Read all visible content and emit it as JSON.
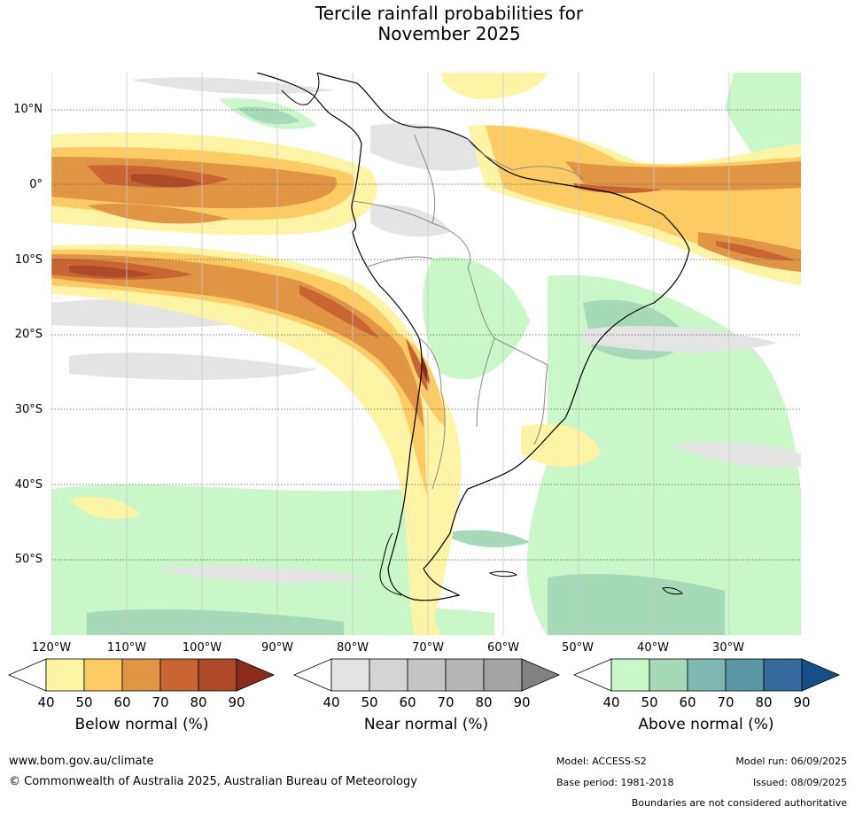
{
  "title": {
    "line1": "Tercile rainfall probabilities for",
    "line2": "November 2025"
  },
  "map": {
    "lat_labels": [
      "10°N",
      "0°",
      "10°S",
      "20°S",
      "30°S",
      "40°S",
      "50°S"
    ],
    "lon_labels": [
      "120°W",
      "110°W",
      "100°W",
      "90°W",
      "80°W",
      "70°W",
      "60°W",
      "50°W",
      "40°W",
      "30°W"
    ]
  },
  "colorbars": [
    {
      "label": "Below normal (%)",
      "ticks": [
        "40",
        "50",
        "60",
        "70",
        "80",
        "90"
      ],
      "colors": [
        "#fff3a6",
        "#fdcb64",
        "#e09545",
        "#c96433",
        "#ad4a29",
        "#8b2b1a"
      ]
    },
    {
      "label": "Near normal (%)",
      "ticks": [
        "40",
        "50",
        "60",
        "70",
        "80",
        "90"
      ],
      "colors": [
        "#e4e4e4",
        "#d4d4d4",
        "#c5c5c5",
        "#b5b5b5",
        "#a4a4a4",
        "#828282"
      ]
    },
    {
      "label": "Above normal (%)",
      "ticks": [
        "40",
        "50",
        "60",
        "70",
        "80",
        "90"
      ],
      "colors": [
        "#c9f7c8",
        "#a6d9b8",
        "#7fb8b0",
        "#5a96a3",
        "#356a9c",
        "#154f86"
      ]
    }
  ],
  "footer": {
    "website": "www.bom.gov.au/climate",
    "copyright": "© Commonwealth of Australia 2025, Australian Bureau of Meteorology",
    "model": "Model: ACCESS-S2",
    "base_period": "Base period: 1981-2018",
    "model_run": "Model run: 06/09/2025",
    "issued": "Issued: 08/09/2025",
    "disclaimer": "Boundaries are not considered authoritative"
  }
}
